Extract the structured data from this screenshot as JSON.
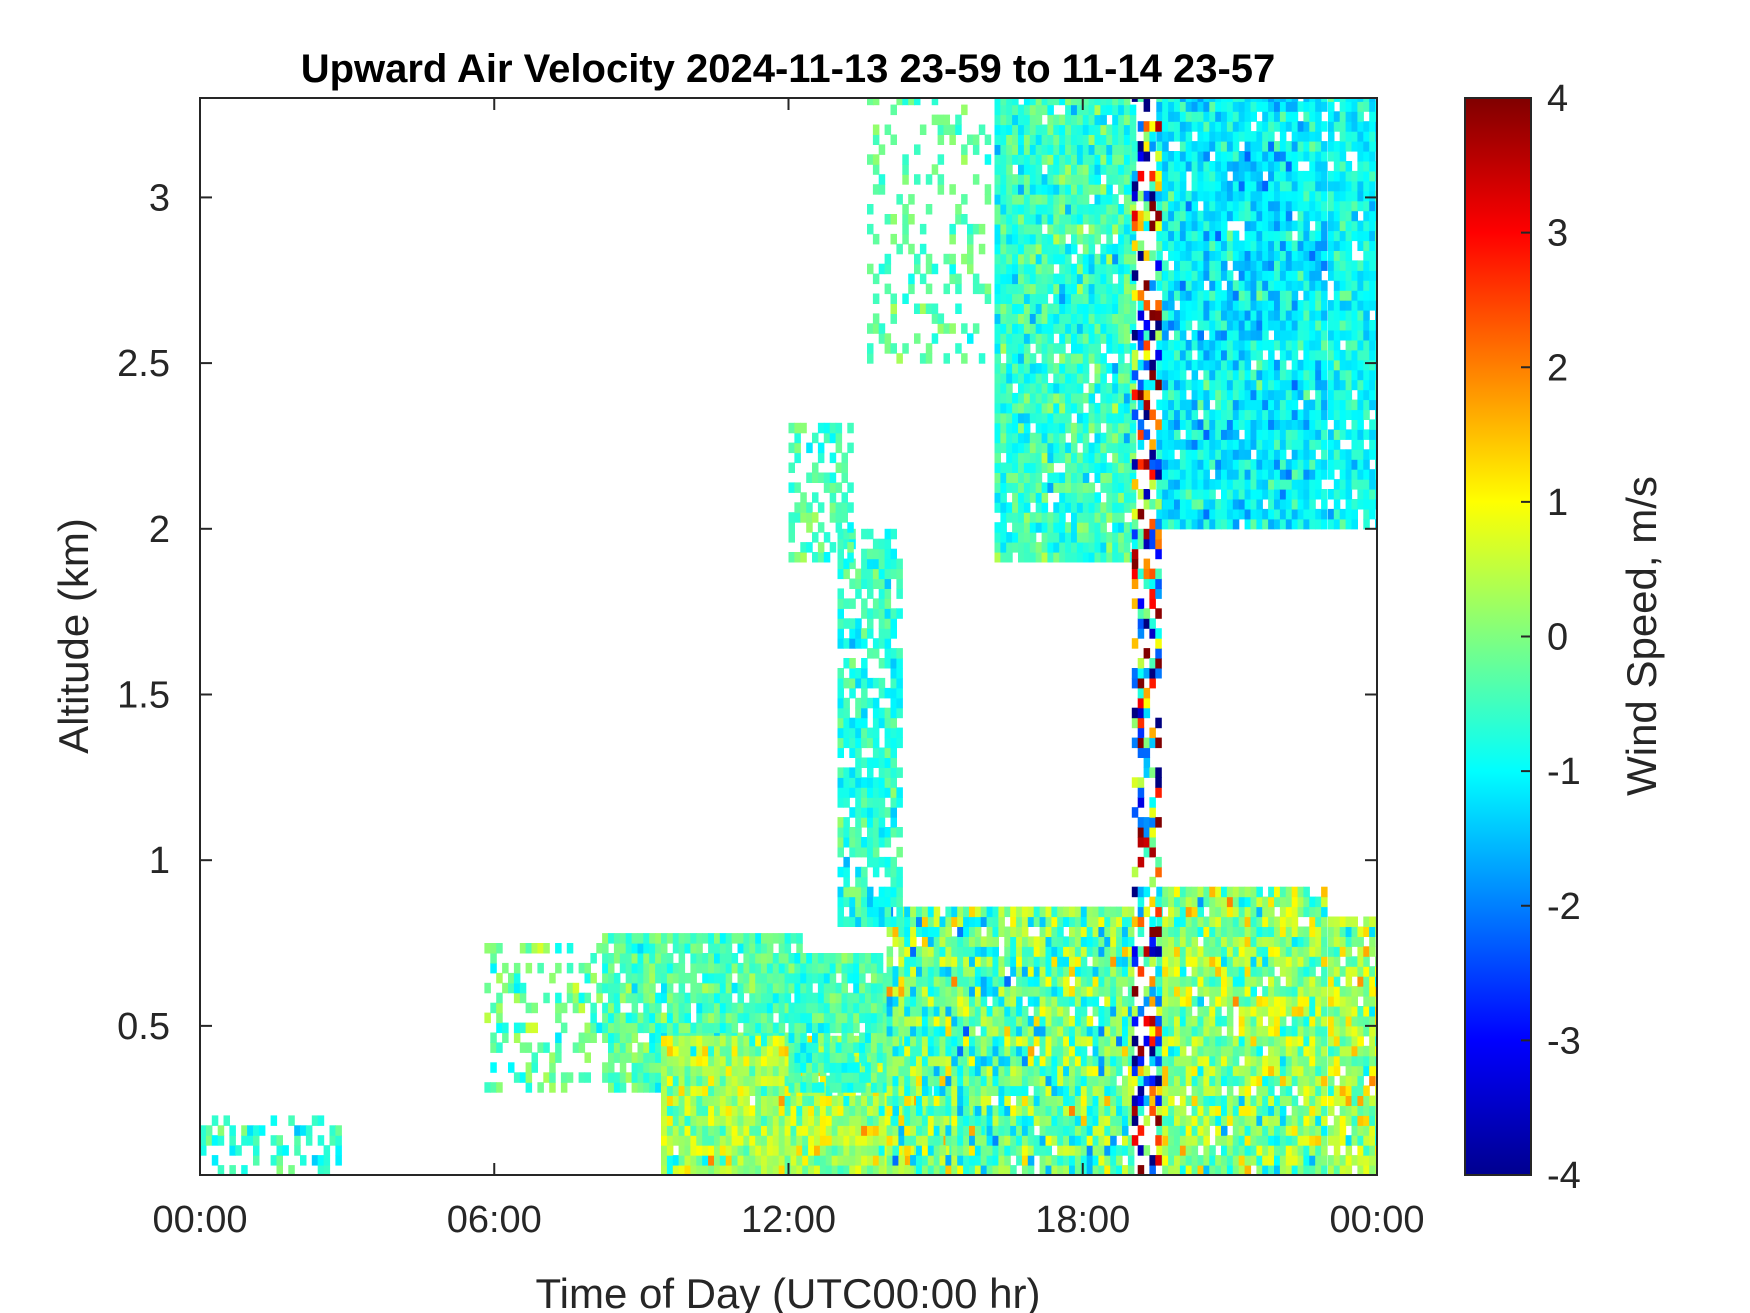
{
  "chart_data": {
    "type": "heatmap",
    "title": "Upward Air Velocity 2024-11-13 23-59 to 11-14 23-57",
    "xlabel": "Time of Day (UTC00:00 hr)",
    "ylabel": "Altitude (km)",
    "colorbar_label": "Wind Speed, m/s",
    "xlim": [
      0,
      24
    ],
    "ylim": [
      0.05,
      3.3
    ],
    "clim": [
      -4,
      4
    ],
    "x_ticks": [
      {
        "value": 0,
        "label": "00:00"
      },
      {
        "value": 6,
        "label": "06:00"
      },
      {
        "value": 12,
        "label": "12:00"
      },
      {
        "value": 18,
        "label": "18:00"
      },
      {
        "value": 24,
        "label": "00:00"
      }
    ],
    "y_ticks": [
      {
        "value": 0.5,
        "label": "0.5"
      },
      {
        "value": 1,
        "label": "1"
      },
      {
        "value": 1.5,
        "label": "1.5"
      },
      {
        "value": 2,
        "label": "2"
      },
      {
        "value": 2.5,
        "label": "2.5"
      },
      {
        "value": 3,
        "label": "3"
      }
    ],
    "colorbar_ticks": [
      {
        "value": 4,
        "label": "4"
      },
      {
        "value": 3,
        "label": "3"
      },
      {
        "value": 2,
        "label": "2"
      },
      {
        "value": 1,
        "label": "1"
      },
      {
        "value": 0,
        "label": "0"
      },
      {
        "value": -1,
        "label": "-1"
      },
      {
        "value": -2,
        "label": "-2"
      },
      {
        "value": -3,
        "label": "-3"
      },
      {
        "value": -4,
        "label": "-4"
      }
    ],
    "colormap": "jet",
    "grid": false,
    "regions": [
      {
        "t0": 0.0,
        "t1": 2.8,
        "z0": 0.05,
        "z1": 0.22,
        "mean": -0.6,
        "spread": 0.5,
        "density": 0.35
      },
      {
        "t0": 5.8,
        "t1": 8.2,
        "z0": 0.3,
        "z1": 0.75,
        "mean": -0.3,
        "spread": 0.6,
        "density": 0.4
      },
      {
        "t0": 8.2,
        "t1": 12.2,
        "z0": 0.3,
        "z1": 0.78,
        "mean": -0.4,
        "spread": 0.5,
        "density": 0.92
      },
      {
        "t0": 9.4,
        "t1": 16.0,
        "z0": 0.05,
        "z1": 0.45,
        "mean": 0.3,
        "spread": 0.8,
        "density": 0.97
      },
      {
        "t0": 12.0,
        "t1": 14.0,
        "z0": 0.3,
        "z1": 0.7,
        "mean": -0.5,
        "spread": 0.5,
        "density": 0.9
      },
      {
        "t0": 14.0,
        "t1": 19.0,
        "z0": 0.05,
        "z1": 0.85,
        "mean": -0.2,
        "spread": 1.1,
        "density": 0.95
      },
      {
        "t0": 19.5,
        "t1": 22.9,
        "z0": 0.05,
        "z1": 0.92,
        "mean": 0.1,
        "spread": 0.9,
        "density": 0.95
      },
      {
        "t0": 23.0,
        "t1": 24.0,
        "z0": 0.05,
        "z1": 0.82,
        "mean": 0.3,
        "spread": 0.9,
        "density": 0.9
      },
      {
        "t0": 16.2,
        "t1": 19.0,
        "z0": 1.9,
        "z1": 3.3,
        "mean": -0.6,
        "spread": 0.6,
        "density": 0.95
      },
      {
        "t0": 19.5,
        "t1": 22.9,
        "z0": 2.0,
        "z1": 3.3,
        "mean": -1.1,
        "spread": 0.6,
        "density": 0.95
      },
      {
        "t0": 23.0,
        "t1": 24.0,
        "z0": 2.0,
        "z1": 3.3,
        "mean": -0.9,
        "spread": 0.5,
        "density": 0.9
      },
      {
        "t0": 13.0,
        "t1": 14.3,
        "z0": 0.8,
        "z1": 2.0,
        "mean": -0.7,
        "spread": 0.5,
        "density": 0.75
      },
      {
        "t0": 12.0,
        "t1": 13.3,
        "z0": 1.9,
        "z1": 2.3,
        "mean": -0.4,
        "spread": 0.5,
        "density": 0.45
      },
      {
        "t0": 13.6,
        "t1": 16.0,
        "z0": 2.5,
        "z1": 3.3,
        "mean": -0.3,
        "spread": 0.4,
        "density": 0.25
      },
      {
        "t0": 19.0,
        "t1": 19.5,
        "z0": 0.05,
        "z1": 3.3,
        "mean": 0.0,
        "spread": 4.0,
        "density": 0.55
      }
    ]
  }
}
